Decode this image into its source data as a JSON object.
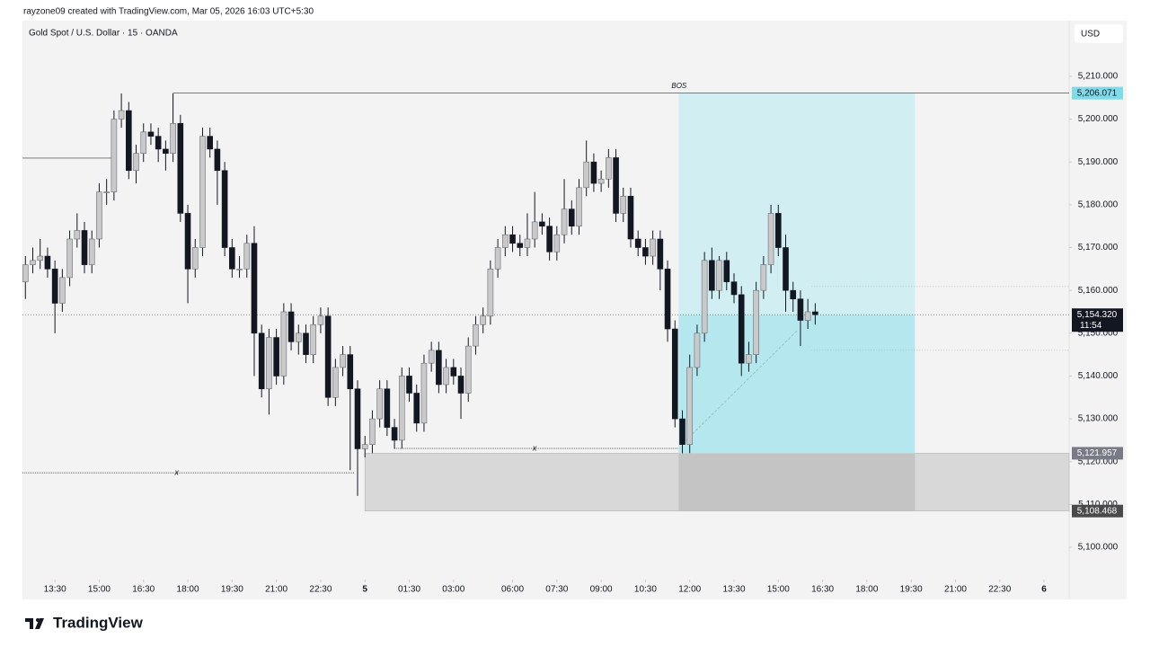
{
  "header": {
    "attribution": "rayzone09 created with TradingView.com, Mar 05, 2026 16:03 UTC+5:30"
  },
  "chart_data": {
    "type": "candlestick",
    "title": "Gold Spot / U.S. Dollar · 15 · OANDA",
    "currency": "USD",
    "up_color": "#c9c9c9",
    "down_color": "#131722",
    "ohlc": [
      [
        5162,
        5168,
        5158,
        5166
      ],
      [
        5166,
        5170,
        5164,
        5167
      ],
      [
        5167,
        5172,
        5165,
        5168
      ],
      [
        5168,
        5170,
        5163,
        5165
      ],
      [
        5165,
        5167,
        5150,
        5157
      ],
      [
        5157,
        5165,
        5155,
        5163
      ],
      [
        5163,
        5174,
        5161,
        5172
      ],
      [
        5172,
        5178,
        5170,
        5174
      ],
      [
        5174,
        5176,
        5164,
        5166
      ],
      [
        5166,
        5174,
        5164,
        5172
      ],
      [
        5172,
        5185,
        5170,
        5183
      ],
      [
        5183,
        5186,
        5180,
        5183
      ],
      [
        5183,
        5202,
        5181,
        5200
      ],
      [
        5200,
        5206,
        5198,
        5202
      ],
      [
        5202,
        5204,
        5186,
        5188
      ],
      [
        5188,
        5194,
        5185,
        5192
      ],
      [
        5192,
        5199,
        5190,
        5197
      ],
      [
        5197,
        5199,
        5194,
        5196
      ],
      [
        5196,
        5198,
        5190,
        5193
      ],
      [
        5193,
        5195,
        5188,
        5192
      ],
      [
        5192,
        5206,
        5190,
        5199
      ],
      [
        5199,
        5201,
        5176,
        5178
      ],
      [
        5178,
        5180,
        5157,
        5165
      ],
      [
        5165,
        5172,
        5163,
        5170
      ],
      [
        5170,
        5198,
        5168,
        5196
      ],
      [
        5196,
        5198,
        5191,
        5193
      ],
      [
        5193,
        5195,
        5180,
        5188
      ],
      [
        5188,
        5190,
        5168,
        5170
      ],
      [
        5170,
        5172,
        5163,
        5165
      ],
      [
        5165,
        5168,
        5163,
        5165
      ],
      [
        5165,
        5173,
        5163,
        5171
      ],
      [
        5171,
        5175,
        5140,
        5150
      ],
      [
        5150,
        5152,
        5135,
        5137
      ],
      [
        5137,
        5151,
        5131,
        5149
      ],
      [
        5149,
        5151,
        5138,
        5140
      ],
      [
        5140,
        5157,
        5138,
        5155
      ],
      [
        5155,
        5157,
        5146,
        5148
      ],
      [
        5148,
        5152,
        5145,
        5150
      ],
      [
        5150,
        5152,
        5143,
        5145
      ],
      [
        5145,
        5154,
        5143,
        5152
      ],
      [
        5152,
        5156,
        5150,
        5154
      ],
      [
        5154,
        5156,
        5133,
        5135
      ],
      [
        5135,
        5144,
        5133,
        5142
      ],
      [
        5142,
        5147,
        5140,
        5145
      ],
      [
        5145,
        5147,
        5118,
        5137
      ],
      [
        5137,
        5139,
        5112,
        5123
      ],
      [
        5123,
        5126,
        5121,
        5124
      ],
      [
        5124,
        5132,
        5122,
        5130
      ],
      [
        5130,
        5139,
        5128,
        5137
      ],
      [
        5137,
        5139,
        5126,
        5128
      ],
      [
        5128,
        5130,
        5123,
        5125
      ],
      [
        5125,
        5142,
        5123,
        5140
      ],
      [
        5140,
        5142,
        5134,
        5136
      ],
      [
        5136,
        5138,
        5127,
        5129
      ],
      [
        5129,
        5145,
        5127,
        5143
      ],
      [
        5143,
        5148,
        5141,
        5146
      ],
      [
        5146,
        5148,
        5136,
        5138
      ],
      [
        5138,
        5144,
        5136,
        5142
      ],
      [
        5142,
        5144,
        5138,
        5140
      ],
      [
        5140,
        5142,
        5130,
        5136
      ],
      [
        5136,
        5149,
        5134,
        5147
      ],
      [
        5147,
        5154,
        5145,
        5152
      ],
      [
        5152,
        5156,
        5150,
        5154
      ],
      [
        5154,
        5167,
        5152,
        5165
      ],
      [
        5165,
        5172,
        5163,
        5170
      ],
      [
        5170,
        5175,
        5168,
        5173
      ],
      [
        5173,
        5175,
        5169,
        5171
      ],
      [
        5171,
        5173,
        5168,
        5170
      ],
      [
        5170,
        5178,
        5168,
        5172
      ],
      [
        5172,
        5183,
        5170,
        5176
      ],
      [
        5176,
        5178,
        5173,
        5175
      ],
      [
        5175,
        5177,
        5167,
        5169
      ],
      [
        5169,
        5175,
        5167,
        5173
      ],
      [
        5173,
        5186,
        5171,
        5179
      ],
      [
        5179,
        5181,
        5173,
        5175
      ],
      [
        5175,
        5186,
        5173,
        5184
      ],
      [
        5184,
        5195,
        5182,
        5190
      ],
      [
        5190,
        5192,
        5183,
        5185
      ],
      [
        5185,
        5188,
        5183,
        5186
      ],
      [
        5186,
        5193,
        5184,
        5191
      ],
      [
        5191,
        5193,
        5176,
        5178
      ],
      [
        5178,
        5184,
        5176,
        5182
      ],
      [
        5182,
        5184,
        5170,
        5172
      ],
      [
        5172,
        5174,
        5168,
        5170
      ],
      [
        5170,
        5172,
        5166,
        5168
      ],
      [
        5168,
        5174,
        5166,
        5172
      ],
      [
        5172,
        5174,
        5160,
        5165
      ],
      [
        5165,
        5167,
        5148,
        5151
      ],
      [
        5151,
        5153,
        5128,
        5130
      ],
      [
        5130,
        5132,
        5121.957,
        5124
      ],
      [
        5124,
        5145,
        5122,
        5142
      ],
      [
        5142,
        5152,
        5140,
        5150
      ],
      [
        5150,
        5169,
        5148,
        5167
      ],
      [
        5167,
        5170,
        5158,
        5160
      ],
      [
        5160,
        5168,
        5158,
        5167
      ],
      [
        5167,
        5169,
        5160,
        5162
      ],
      [
        5162,
        5164,
        5157,
        5159
      ],
      [
        5159,
        5161,
        5140,
        5143
      ],
      [
        5143,
        5148,
        5141,
        5145
      ],
      [
        5145,
        5162,
        5143,
        5160
      ],
      [
        5160,
        5168,
        5158,
        5166
      ],
      [
        5166,
        5180,
        5164,
        5178
      ],
      [
        5178,
        5180,
        5168,
        5170
      ],
      [
        5170,
        5173,
        5155,
        5160
      ],
      [
        5160,
        5162,
        5155,
        5158
      ],
      [
        5158,
        5160,
        5147,
        5153
      ],
      [
        5153,
        5158,
        5151,
        5155
      ],
      [
        5155,
        5157,
        5152,
        5154.32
      ]
    ],
    "xlim": [
      -0.4,
      141.4
    ],
    "xticks": [
      {
        "value": 4,
        "label": "13:30"
      },
      {
        "value": 10,
        "label": "15:00"
      },
      {
        "value": 16,
        "label": "16:30"
      },
      {
        "value": 22,
        "label": "18:00"
      },
      {
        "value": 28,
        "label": "19:30"
      },
      {
        "value": 34,
        "label": "21:00"
      },
      {
        "value": 40,
        "label": "22:30"
      },
      {
        "value": 46,
        "label": "5"
      },
      {
        "value": 52,
        "label": "01:30"
      },
      {
        "value": 58,
        "label": "03:00"
      },
      {
        "value": 66,
        "label": "06:00"
      },
      {
        "value": 72,
        "label": "07:30"
      },
      {
        "value": 78,
        "label": "09:00"
      },
      {
        "value": 84,
        "label": "10:30"
      },
      {
        "value": 90,
        "label": "12:00"
      },
      {
        "value": 96,
        "label": "13:30"
      },
      {
        "value": 102,
        "label": "15:00"
      },
      {
        "value": 108,
        "label": "16:30"
      },
      {
        "value": 114,
        "label": "18:00"
      },
      {
        "value": 120,
        "label": "19:30"
      },
      {
        "value": 126,
        "label": "21:00"
      },
      {
        "value": 132,
        "label": "22:30"
      },
      {
        "value": 138,
        "label": "6"
      }
    ],
    "ylim": [
      5093.5,
      5223
    ],
    "yticks": [
      {
        "value": 5100,
        "label": "5,100.000"
      },
      {
        "value": 5110,
        "label": "5,110.000"
      },
      {
        "value": 5120,
        "label": "5,120.000"
      },
      {
        "value": 5130,
        "label": "5,130.000"
      },
      {
        "value": 5140,
        "label": "5,140.000"
      },
      {
        "value": 5150,
        "label": "5,150.000"
      },
      {
        "value": 5160,
        "label": "5,160.000"
      },
      {
        "value": 5170,
        "label": "5,170.000"
      },
      {
        "value": 5180,
        "label": "5,180.000"
      },
      {
        "value": 5190,
        "label": "5,190.000"
      },
      {
        "value": 5200,
        "label": "5,200.000"
      },
      {
        "value": 5210,
        "label": "5,210.000"
      }
    ],
    "last_price": {
      "value": 5154.32,
      "label": "5,154.320"
    },
    "countdown": "11:54",
    "bos": {
      "label": "BOS",
      "start": 20
    },
    "position": {
      "start": 88.5,
      "end": 120.5,
      "target": {
        "value": 5206.071,
        "label": "5,206.071"
      },
      "entry": {
        "value": 5121.957,
        "label": "5,121.957"
      },
      "stop": {
        "value": 5108.468,
        "label": "5,108.468"
      }
    },
    "zone": {
      "start": 46
    },
    "lines": [
      {
        "value": 5190.9,
        "start": -0.4,
        "end": 12
      },
      {
        "value": 5117.4,
        "start": -0.4,
        "end": 44.5,
        "label": "x",
        "label_at": 20.5
      },
      {
        "value": 5123.1,
        "start": 50,
        "end": 88.5,
        "label": "x",
        "label_at": 69
      }
    ],
    "guides": {
      "start": 106.5,
      "values": [
        5160.9,
        5146
      ]
    },
    "trend": {
      "x": [
        89.5,
        104.5
      ],
      "y": [
        5125,
        5150.5
      ]
    }
  },
  "brand": "TradingView"
}
